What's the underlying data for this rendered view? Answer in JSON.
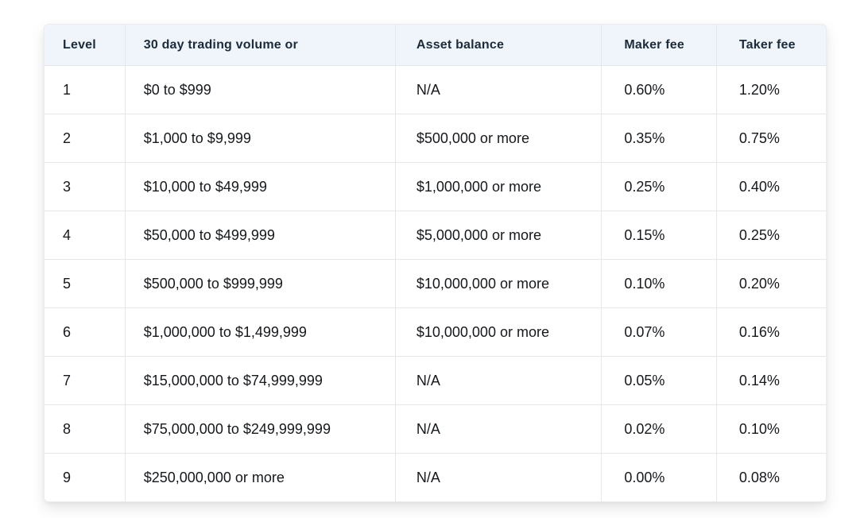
{
  "theme": {
    "page_background": "#ffffff",
    "header_background": "#eff5fb",
    "header_text_color": "#1c2b39",
    "body_text_color": "#15181c",
    "border_color": "#e7e7e7"
  },
  "table": {
    "columns": [
      "Level",
      "30 day trading volume or",
      "Asset balance",
      "Maker fee",
      "Taker fee"
    ],
    "rows": [
      {
        "level": "1",
        "volume": "$0 to $999",
        "asset_balance": "N/A",
        "maker_fee": "0.60%",
        "taker_fee": "1.20%"
      },
      {
        "level": "2",
        "volume": "$1,000 to $9,999",
        "asset_balance": "$500,000 or more",
        "maker_fee": "0.35%",
        "taker_fee": "0.75%"
      },
      {
        "level": "3",
        "volume": "$10,000 to $49,999",
        "asset_balance": "$1,000,000 or more",
        "maker_fee": "0.25%",
        "taker_fee": "0.40%"
      },
      {
        "level": "4",
        "volume": "$50,000 to $499,999",
        "asset_balance": "$5,000,000 or more",
        "maker_fee": "0.15%",
        "taker_fee": "0.25%"
      },
      {
        "level": "5",
        "volume": "$500,000 to $999,999",
        "asset_balance": "$10,000,000 or more",
        "maker_fee": "0.10%",
        "taker_fee": "0.20%"
      },
      {
        "level": "6",
        "volume": "$1,000,000 to $1,499,999",
        "asset_balance": "$10,000,000 or more",
        "maker_fee": "0.07%",
        "taker_fee": "0.16%"
      },
      {
        "level": "7",
        "volume": "$15,000,000 to $74,999,999",
        "asset_balance": "N/A",
        "maker_fee": "0.05%",
        "taker_fee": "0.14%"
      },
      {
        "level": "8",
        "volume": "$75,000,000 to $249,999,999",
        "asset_balance": "N/A",
        "maker_fee": "0.02%",
        "taker_fee": "0.10%"
      },
      {
        "level": "9",
        "volume": "$250,000,000 or more",
        "asset_balance": "N/A",
        "maker_fee": "0.00%",
        "taker_fee": "0.08%"
      }
    ]
  }
}
